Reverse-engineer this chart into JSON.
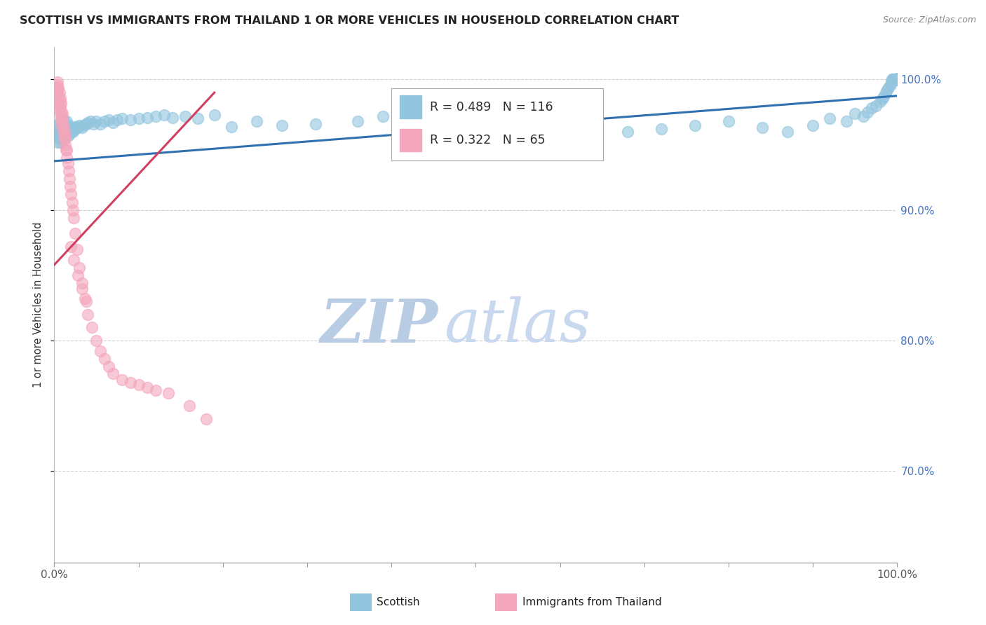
{
  "title": "SCOTTISH VS IMMIGRANTS FROM THAILAND 1 OR MORE VEHICLES IN HOUSEHOLD CORRELATION CHART",
  "source": "Source: ZipAtlas.com",
  "ylabel": "1 or more Vehicles in Household",
  "xlim": [
    0.0,
    1.0
  ],
  "ylim": [
    0.63,
    1.025
  ],
  "right_yticks": [
    0.7,
    0.8,
    0.9,
    1.0
  ],
  "right_yticklabels": [
    "70.0%",
    "80.0%",
    "90.0%",
    "100.0%"
  ],
  "legend_blue_label": "Scottish",
  "legend_pink_label": "Immigrants from Thailand",
  "R_blue": 0.489,
  "N_blue": 116,
  "R_pink": 0.322,
  "N_pink": 65,
  "blue_color": "#92c5de",
  "pink_color": "#f4a6bc",
  "blue_line_color": "#3070b0",
  "pink_line_color": "#d04060",
  "watermark_zip": "ZIP",
  "watermark_atlas": "atlas",
  "watermark_color": "#d0dff0",
  "background_color": "#ffffff",
  "grid_color": "#cccccc",
  "title_color": "#222222",
  "axis_label_color": "#333333",
  "right_tick_color": "#4472c4",
  "source_color": "#888888",
  "blue_trend_x": [
    0.0,
    1.0
  ],
  "blue_trend_y": [
    0.9375,
    0.9875
  ],
  "pink_trend_x": [
    0.0,
    0.19
  ],
  "pink_trend_y": [
    0.858,
    0.99
  ],
  "blue_scatter_x": [
    0.003,
    0.004,
    0.005,
    0.005,
    0.006,
    0.006,
    0.007,
    0.007,
    0.007,
    0.008,
    0.008,
    0.009,
    0.009,
    0.01,
    0.01,
    0.011,
    0.011,
    0.012,
    0.012,
    0.013,
    0.013,
    0.014,
    0.015,
    0.015,
    0.016,
    0.016,
    0.017,
    0.018,
    0.019,
    0.02,
    0.021,
    0.022,
    0.023,
    0.025,
    0.026,
    0.028,
    0.03,
    0.033,
    0.035,
    0.038,
    0.04,
    0.043,
    0.046,
    0.05,
    0.055,
    0.06,
    0.065,
    0.07,
    0.075,
    0.08,
    0.09,
    0.1,
    0.11,
    0.12,
    0.13,
    0.14,
    0.155,
    0.17,
    0.19,
    0.21,
    0.24,
    0.27,
    0.31,
    0.36,
    0.39,
    0.43,
    0.51,
    0.56,
    0.63,
    0.68,
    0.72,
    0.76,
    0.8,
    0.84,
    0.87,
    0.9,
    0.92,
    0.94,
    0.95,
    0.96,
    0.965,
    0.97,
    0.975,
    0.98,
    0.982,
    0.984,
    0.986,
    0.988,
    0.99,
    0.992,
    0.993,
    0.994,
    0.995,
    0.996,
    0.997,
    0.998,
    0.999,
    1.0,
    1.0,
    1.0,
    1.0,
    1.0,
    1.0,
    1.0,
    1.0,
    1.0,
    1.0,
    1.0,
    1.0,
    1.0,
    1.0,
    1.0,
    1.0,
    1.0,
    1.0,
    1.0
  ],
  "blue_scatter_y": [
    0.96,
    0.952,
    0.958,
    0.965,
    0.955,
    0.963,
    0.952,
    0.96,
    0.968,
    0.957,
    0.965,
    0.954,
    0.962,
    0.958,
    0.966,
    0.955,
    0.963,
    0.96,
    0.968,
    0.957,
    0.965,
    0.962,
    0.96,
    0.968,
    0.957,
    0.965,
    0.963,
    0.961,
    0.959,
    0.963,
    0.961,
    0.96,
    0.964,
    0.962,
    0.964,
    0.963,
    0.965,
    0.963,
    0.965,
    0.966,
    0.967,
    0.968,
    0.966,
    0.968,
    0.966,
    0.968,
    0.969,
    0.967,
    0.969,
    0.97,
    0.969,
    0.97,
    0.971,
    0.972,
    0.973,
    0.971,
    0.972,
    0.97,
    0.973,
    0.964,
    0.968,
    0.965,
    0.966,
    0.968,
    0.972,
    0.97,
    0.973,
    0.963,
    0.953,
    0.96,
    0.962,
    0.965,
    0.968,
    0.963,
    0.96,
    0.965,
    0.97,
    0.968,
    0.974,
    0.972,
    0.975,
    0.978,
    0.98,
    0.983,
    0.985,
    0.987,
    0.99,
    0.992,
    0.994,
    0.996,
    0.998,
    1.0,
    1.0,
    1.0,
    1.0,
    1.0,
    1.0,
    1.0,
    1.0,
    1.0,
    1.0,
    1.0,
    1.0,
    1.0,
    1.0,
    1.0,
    1.0,
    1.0,
    1.0,
    1.0,
    1.0,
    1.0,
    1.0,
    1.0,
    1.0,
    1.0
  ],
  "pink_scatter_x": [
    0.002,
    0.003,
    0.003,
    0.004,
    0.004,
    0.004,
    0.005,
    0.005,
    0.005,
    0.006,
    0.006,
    0.006,
    0.007,
    0.007,
    0.007,
    0.008,
    0.008,
    0.008,
    0.009,
    0.009,
    0.01,
    0.01,
    0.01,
    0.011,
    0.011,
    0.012,
    0.012,
    0.013,
    0.013,
    0.014,
    0.015,
    0.015,
    0.016,
    0.017,
    0.018,
    0.019,
    0.02,
    0.021,
    0.022,
    0.023,
    0.025,
    0.027,
    0.03,
    0.033,
    0.036,
    0.04,
    0.045,
    0.05,
    0.055,
    0.06,
    0.065,
    0.07,
    0.08,
    0.09,
    0.1,
    0.11,
    0.12,
    0.135,
    0.02,
    0.023,
    0.028,
    0.033,
    0.038,
    0.16,
    0.18
  ],
  "pink_scatter_y": [
    0.99,
    0.994,
    0.996,
    0.986,
    0.992,
    0.998,
    0.982,
    0.988,
    0.994,
    0.978,
    0.984,
    0.99,
    0.974,
    0.98,
    0.986,
    0.97,
    0.976,
    0.982,
    0.966,
    0.972,
    0.962,
    0.968,
    0.974,
    0.958,
    0.964,
    0.954,
    0.96,
    0.95,
    0.956,
    0.946,
    0.94,
    0.946,
    0.936,
    0.93,
    0.924,
    0.918,
    0.912,
    0.906,
    0.9,
    0.894,
    0.882,
    0.87,
    0.856,
    0.844,
    0.832,
    0.82,
    0.81,
    0.8,
    0.792,
    0.786,
    0.78,
    0.775,
    0.77,
    0.768,
    0.766,
    0.764,
    0.762,
    0.76,
    0.872,
    0.862,
    0.85,
    0.84,
    0.83,
    0.75,
    0.74
  ]
}
